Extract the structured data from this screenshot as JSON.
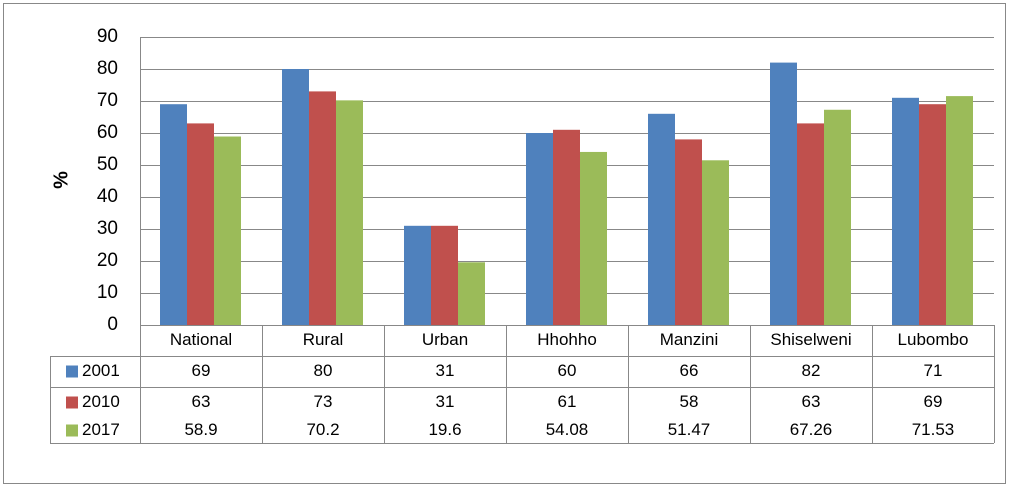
{
  "chart_data": {
    "type": "bar",
    "ylabel": "%",
    "categories": [
      "National",
      "Rural",
      "Urban",
      "Hhohho",
      "Manzini",
      "Shiselweni",
      "Lubombo"
    ],
    "series": [
      {
        "name": "2001",
        "color": "#4f81bd",
        "values": [
          69,
          80,
          31,
          60,
          66,
          82,
          71
        ]
      },
      {
        "name": "2010",
        "color": "#c0504d",
        "values": [
          63,
          73,
          31,
          61,
          58,
          63,
          69
        ]
      },
      {
        "name": "2017",
        "color": "#9bbb59",
        "values": [
          58.9,
          70.2,
          19.6,
          54.08,
          51.47,
          67.26,
          71.53
        ]
      }
    ],
    "ylim": [
      0,
      90
    ],
    "yticks": [
      0,
      10,
      20,
      30,
      40,
      50,
      60,
      70,
      80,
      90
    ],
    "grid": true
  }
}
